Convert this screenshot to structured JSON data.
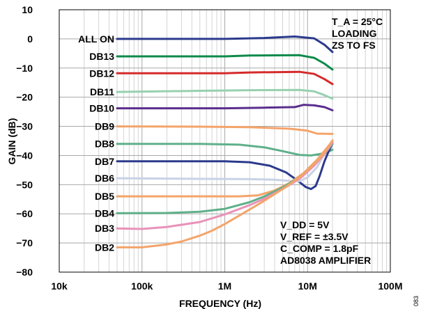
{
  "chart_data": {
    "type": "line",
    "xlabel": "FREQUENCY (Hz)",
    "ylabel": "GAIN (dB)",
    "xscale": "log",
    "xlim": [
      10000,
      100000000
    ],
    "ylim": [
      -80,
      10
    ],
    "grid": true,
    "x_ticks": [
      {
        "value": 10000,
        "label": "10k"
      },
      {
        "value": 100000,
        "label": "100k"
      },
      {
        "value": 1000000,
        "label": "1M"
      },
      {
        "value": 10000000,
        "label": "10M"
      },
      {
        "value": 100000000,
        "label": "100M"
      }
    ],
    "y_ticks": [
      10,
      0,
      -10,
      -20,
      -30,
      -40,
      -50,
      -60,
      -70,
      -80
    ],
    "annotations": {
      "top_right": [
        "T_A = 25°C",
        "LOADING",
        "ZS TO FS"
      ],
      "bottom_right": [
        "V_DD = 5V",
        "V_REF = ±3.5V",
        "C_COMP = 1.8pF",
        "AD8038 AMPLIFIER"
      ]
    },
    "figure_number": "083",
    "series": [
      {
        "name": "ALL ON",
        "color": "#2b3a8c",
        "points": [
          [
            50000,
            0
          ],
          [
            1000000,
            0
          ],
          [
            3000000,
            0.3
          ],
          [
            7000000,
            0.8
          ],
          [
            12000000,
            0.2
          ],
          [
            16000000,
            -2
          ],
          [
            20000000,
            -4.5
          ]
        ]
      },
      {
        "name": "DB13",
        "color": "#0d8a4a",
        "points": [
          [
            50000,
            -6
          ],
          [
            1000000,
            -6
          ],
          [
            2000000,
            -5.7
          ],
          [
            8000000,
            -5.6
          ],
          [
            12000000,
            -6.5
          ],
          [
            16000000,
            -8.5
          ],
          [
            20000000,
            -10.5
          ]
        ]
      },
      {
        "name": "DB12",
        "color": "#d62a2a",
        "points": [
          [
            50000,
            -11.8
          ],
          [
            1000000,
            -11.8
          ],
          [
            2000000,
            -11.5
          ],
          [
            8000000,
            -11.3
          ],
          [
            12000000,
            -12
          ],
          [
            16000000,
            -13.8
          ],
          [
            20000000,
            -15.5
          ]
        ]
      },
      {
        "name": "DB11",
        "color": "#98d0b0",
        "points": [
          [
            50000,
            -18.2
          ],
          [
            500000,
            -17.8
          ],
          [
            2000000,
            -17.6
          ],
          [
            8000000,
            -17.5
          ],
          [
            12000000,
            -18
          ],
          [
            16000000,
            -19.3
          ],
          [
            20000000,
            -20.5
          ]
        ]
      },
      {
        "name": "DB10",
        "color": "#5b2d8e",
        "points": [
          [
            50000,
            -23.8
          ],
          [
            1000000,
            -23.8
          ],
          [
            3000000,
            -23.6
          ],
          [
            7000000,
            -23.4
          ],
          [
            9000000,
            -22.6
          ],
          [
            12000000,
            -22.8
          ],
          [
            16000000,
            -23.4
          ],
          [
            20000000,
            -24.5
          ]
        ]
      },
      {
        "name": "DB9",
        "color": "#f4a46a",
        "points": [
          [
            50000,
            -30
          ],
          [
            500000,
            -30.1
          ],
          [
            2000000,
            -30.3
          ],
          [
            6000000,
            -30.8
          ],
          [
            10000000,
            -31.5
          ],
          [
            13000000,
            -32.5
          ],
          [
            20000000,
            -32.6
          ]
        ]
      },
      {
        "name": "DB8",
        "color": "#5fb08a",
        "points": [
          [
            50000,
            -36
          ],
          [
            500000,
            -36
          ],
          [
            1500000,
            -36.3
          ],
          [
            3000000,
            -37.2
          ],
          [
            5000000,
            -38.5
          ],
          [
            8000000,
            -39.8
          ],
          [
            11000000,
            -40
          ],
          [
            14000000,
            -39.5
          ],
          [
            17000000,
            -39
          ],
          [
            20000000,
            -38
          ]
        ]
      },
      {
        "name": "DB7",
        "color": "#2b3a8c",
        "points": [
          [
            50000,
            -42
          ],
          [
            1000000,
            -42
          ],
          [
            2000000,
            -42.3
          ],
          [
            3500000,
            -43.5
          ],
          [
            5500000,
            -45.8
          ],
          [
            7500000,
            -48.5
          ],
          [
            9500000,
            -50.8
          ],
          [
            11000000,
            -51.5
          ],
          [
            12500000,
            -50.5
          ],
          [
            14000000,
            -47
          ],
          [
            16000000,
            -42
          ],
          [
            18000000,
            -38.5
          ],
          [
            20000000,
            -36
          ]
        ]
      },
      {
        "name": "DB6",
        "color": "#c8d2e6",
        "points": [
          [
            50000,
            -47.8
          ],
          [
            500000,
            -48
          ],
          [
            2000000,
            -48.1
          ],
          [
            4000000,
            -48.3
          ],
          [
            6000000,
            -48.7
          ],
          [
            8000000,
            -48.8
          ],
          [
            10000000,
            -47.5
          ],
          [
            13000000,
            -44
          ],
          [
            16000000,
            -39.5
          ],
          [
            20000000,
            -35.5
          ]
        ]
      },
      {
        "name": "DB5",
        "color": "#f4a46a",
        "points": [
          [
            50000,
            -54
          ],
          [
            500000,
            -54
          ],
          [
            1500000,
            -54
          ],
          [
            2500000,
            -53.7
          ],
          [
            4000000,
            -52
          ],
          [
            6000000,
            -49.5
          ],
          [
            9000000,
            -46
          ],
          [
            13000000,
            -41.5
          ],
          [
            17000000,
            -37.5
          ],
          [
            20000000,
            -35
          ]
        ]
      },
      {
        "name": "DB4",
        "color": "#5fb08a",
        "points": [
          [
            50000,
            -59.8
          ],
          [
            200000,
            -59.7
          ],
          [
            500000,
            -59.3
          ],
          [
            1000000,
            -58.3
          ],
          [
            2000000,
            -56
          ],
          [
            3000000,
            -54
          ],
          [
            5000000,
            -51
          ],
          [
            8000000,
            -47.5
          ],
          [
            12000000,
            -43
          ],
          [
            16000000,
            -39.5
          ],
          [
            20000000,
            -36
          ]
        ]
      },
      {
        "name": "DB3",
        "color": "#e892b8",
        "points": [
          [
            50000,
            -65
          ],
          [
            100000,
            -65.2
          ],
          [
            200000,
            -64.5
          ],
          [
            500000,
            -62.8
          ],
          [
            1000000,
            -60.2
          ],
          [
            2000000,
            -57
          ],
          [
            3000000,
            -54.8
          ],
          [
            5000000,
            -51.5
          ],
          [
            8000000,
            -48
          ],
          [
            12000000,
            -43.5
          ],
          [
            16000000,
            -39.5
          ],
          [
            20000000,
            -35.5
          ]
        ]
      },
      {
        "name": "DB2",
        "color": "#f4a46a",
        "points": [
          [
            50000,
            -71.5
          ],
          [
            100000,
            -71.5
          ],
          [
            200000,
            -70.5
          ],
          [
            300000,
            -69.5
          ],
          [
            500000,
            -67.5
          ],
          [
            700000,
            -65.8
          ],
          [
            1000000,
            -63.5
          ],
          [
            2000000,
            -58.5
          ],
          [
            3000000,
            -55.5
          ],
          [
            5000000,
            -51.5
          ],
          [
            8000000,
            -47.5
          ],
          [
            12000000,
            -43
          ],
          [
            16000000,
            -39
          ],
          [
            20000000,
            -34.8
          ]
        ]
      }
    ]
  }
}
